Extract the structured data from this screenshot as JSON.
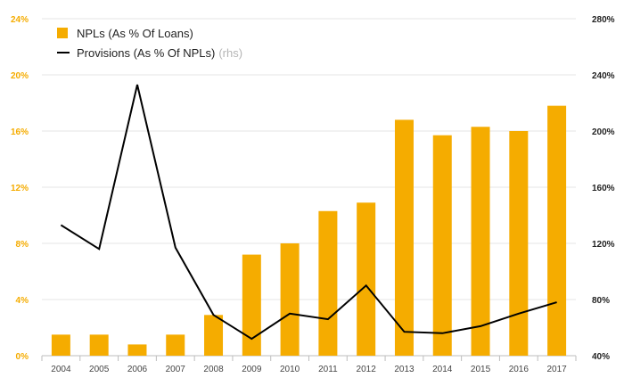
{
  "colors": {
    "bar": "#F5AC00",
    "line": "#000000",
    "grid": "#e6e6e6",
    "left_tick": "#F5AC00",
    "right_tick": "#222222",
    "x_tick": "#444444"
  },
  "legend": {
    "bar_label": "NPLs (As % Of Loans)",
    "line_label": "Provisions (As % Of NPLs)",
    "line_suffix": "(rhs)"
  },
  "chart_data": {
    "type": "bar",
    "categories": [
      "2004",
      "2005",
      "2006",
      "2007",
      "2008",
      "2009",
      "2010",
      "2011",
      "2012",
      "2013",
      "2014",
      "2015",
      "2016",
      "2017"
    ],
    "series": [
      {
        "name": "NPLs (As % Of Loans)",
        "type": "bar",
        "axis": "left",
        "values": [
          1.5,
          1.5,
          0.8,
          1.5,
          2.9,
          7.2,
          8.0,
          10.3,
          10.9,
          16.8,
          15.7,
          16.3,
          16.0,
          17.8
        ]
      },
      {
        "name": "Provisions (As % Of NPLs)",
        "type": "line",
        "axis": "right",
        "values": [
          133,
          116,
          233,
          117,
          69,
          52,
          70,
          66,
          90,
          57,
          56,
          61,
          70,
          78
        ]
      }
    ],
    "left_axis": {
      "ylim": [
        0,
        24
      ],
      "ticks": [
        "0%",
        "4%",
        "8%",
        "12%",
        "16%",
        "20%",
        "24%"
      ]
    },
    "right_axis": {
      "ylim": [
        40,
        280
      ],
      "ticks": [
        "40%",
        "80%",
        "120%",
        "160%",
        "200%",
        "240%",
        "280%"
      ]
    },
    "grid": true,
    "legend_position": "top-left"
  }
}
